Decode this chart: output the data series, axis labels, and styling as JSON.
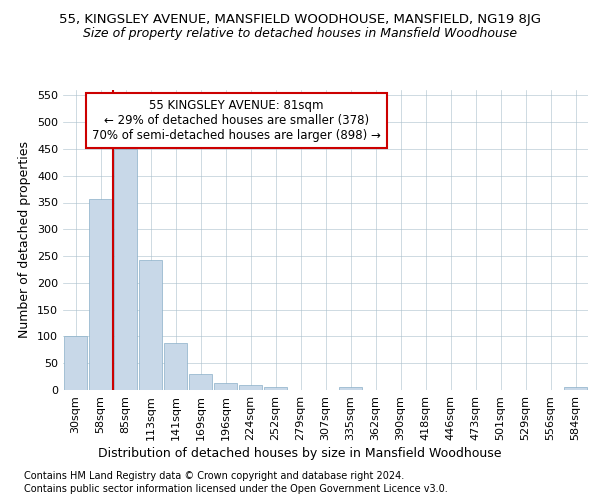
{
  "title1": "55, KINGSLEY AVENUE, MANSFIELD WOODHOUSE, MANSFIELD, NG19 8JG",
  "title2": "Size of property relative to detached houses in Mansfield Woodhouse",
  "xlabel": "Distribution of detached houses by size in Mansfield Woodhouse",
  "ylabel": "Number of detached properties",
  "footer1": "Contains HM Land Registry data © Crown copyright and database right 2024.",
  "footer2": "Contains public sector information licensed under the Open Government Licence v3.0.",
  "annotation_title": "55 KINGSLEY AVENUE: 81sqm",
  "annotation_line1": "← 29% of detached houses are smaller (378)",
  "annotation_line2": "70% of semi-detached houses are larger (898) →",
  "bar_color": "#c8d8e8",
  "bar_edge_color": "#8ab0c8",
  "vline_color": "#cc0000",
  "annotation_box_color": "#ffffff",
  "annotation_box_edge": "#cc0000",
  "background_color": "#ffffff",
  "grid_color": "#aac0cc",
  "categories": [
    "30sqm",
    "58sqm",
    "85sqm",
    "113sqm",
    "141sqm",
    "169sqm",
    "196sqm",
    "224sqm",
    "252sqm",
    "279sqm",
    "307sqm",
    "335sqm",
    "362sqm",
    "390sqm",
    "418sqm",
    "446sqm",
    "473sqm",
    "501sqm",
    "529sqm",
    "556sqm",
    "584sqm"
  ],
  "values": [
    101,
    356,
    449,
    243,
    88,
    30,
    14,
    10,
    6,
    0,
    0,
    5,
    0,
    0,
    0,
    0,
    0,
    0,
    0,
    0,
    5
  ],
  "ylim": [
    0,
    560
  ],
  "yticks": [
    0,
    50,
    100,
    150,
    200,
    250,
    300,
    350,
    400,
    450,
    500,
    550
  ],
  "vline_x_index": 2,
  "title1_fontsize": 9.5,
  "title2_fontsize": 9,
  "axis_label_fontsize": 9,
  "tick_fontsize": 8,
  "annotation_fontsize": 8.5,
  "footer_fontsize": 7
}
